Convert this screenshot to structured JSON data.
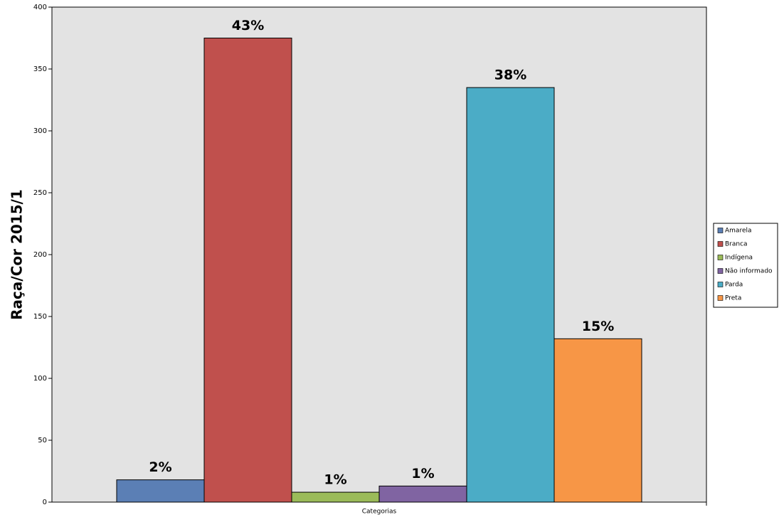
{
  "chart_data": {
    "type": "bar",
    "ylabel": "Raça/Cor 2015/1",
    "categories": [
      "Categorias"
    ],
    "series": [
      {
        "name": "Amarela",
        "color": "#5b7fb5",
        "values": [
          18
        ],
        "data_label": "2%"
      },
      {
        "name": "Branca",
        "color": "#c0504d",
        "values": [
          375
        ],
        "data_label": "43%"
      },
      {
        "name": "Indígena",
        "color": "#9bbb59",
        "values": [
          8
        ],
        "data_label": "1%"
      },
      {
        "name": "Não informado",
        "color": "#8064a2",
        "values": [
          13
        ],
        "data_label": "1%"
      },
      {
        "name": "Parda",
        "color": "#4bacc6",
        "values": [
          335
        ],
        "data_label": "38%"
      },
      {
        "name": "Preta",
        "color": "#f79646",
        "values": [
          132
        ],
        "data_label": "15%"
      }
    ],
    "ylim": [
      0,
      400
    ],
    "yticks": [
      0,
      50,
      100,
      150,
      200,
      250,
      300,
      350,
      400
    ],
    "legend": "right"
  }
}
